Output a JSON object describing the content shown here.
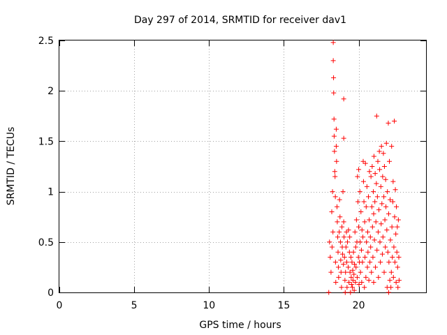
{
  "chart_data": {
    "type": "scatter",
    "title": "Day 297 of 2014, SRMTID for receiver dav1",
    "xlabel": "GPS time / hours",
    "ylabel": "SRMTID / TECUs",
    "xlim": [
      0,
      24.5
    ],
    "ylim": [
      0,
      2.5
    ],
    "xticks": [
      0,
      5,
      10,
      15,
      20
    ],
    "xtick_labels": [
      "0",
      "5",
      "10",
      "15",
      "20"
    ],
    "yticks": [
      0,
      0.5,
      1,
      1.5,
      2,
      2.5
    ],
    "ytick_labels": [
      "0",
      "0.5",
      "1",
      "1.5",
      "2",
      "2.5"
    ],
    "grid": true,
    "marker": "+",
    "color": "#ff0000",
    "series": [
      {
        "name": "dav1",
        "points": [
          [
            18.0,
            0.0
          ],
          [
            18.05,
            0.5
          ],
          [
            18.1,
            0.35
          ],
          [
            18.15,
            0.2
          ],
          [
            18.2,
            0.8
          ],
          [
            18.22,
            0.45
          ],
          [
            18.25,
            1.0
          ],
          [
            18.28,
            0.6
          ],
          [
            18.3,
            2.48
          ],
          [
            18.3,
            2.3
          ],
          [
            18.32,
            2.13
          ],
          [
            18.33,
            1.98
          ],
          [
            18.35,
            1.72
          ],
          [
            18.36,
            1.55
          ],
          [
            18.38,
            1.4
          ],
          [
            18.4,
            1.2
          ],
          [
            18.42,
            1.15
          ],
          [
            18.44,
            0.95
          ],
          [
            18.45,
            0.3
          ],
          [
            18.47,
            0.1
          ],
          [
            18.5,
            1.62
          ],
          [
            18.5,
            1.45
          ],
          [
            18.52,
            1.3
          ],
          [
            18.55,
            0.85
          ],
          [
            18.57,
            0.7
          ],
          [
            18.6,
            0.55
          ],
          [
            18.62,
            0.4
          ],
          [
            18.64,
            0.25
          ],
          [
            18.66,
            0.15
          ],
          [
            18.7,
            0.6
          ],
          [
            18.72,
            0.92
          ],
          [
            18.75,
            0.75
          ],
          [
            18.78,
            0.5
          ],
          [
            18.8,
            0.32
          ],
          [
            18.82,
            0.2
          ],
          [
            18.85,
            0.05
          ],
          [
            18.88,
            0.65
          ],
          [
            18.9,
            0.45
          ],
          [
            18.92,
            0.38
          ],
          [
            18.95,
            1.0
          ],
          [
            18.98,
            0.28
          ],
          [
            19.0,
            0.7
          ],
          [
            19.0,
            1.92
          ],
          [
            19.0,
            1.53
          ],
          [
            19.02,
            0.55
          ],
          [
            19.05,
            0.35
          ],
          [
            19.08,
            0.12
          ],
          [
            19.1,
            0.0
          ],
          [
            19.12,
            0.2
          ],
          [
            19.15,
            0.45
          ],
          [
            19.18,
            0.6
          ],
          [
            19.2,
            0.3
          ],
          [
            19.22,
            0.05
          ],
          [
            19.25,
            0.5
          ],
          [
            19.3,
            0.25
          ],
          [
            19.32,
            0.62
          ],
          [
            19.35,
            0.1
          ],
          [
            19.38,
            0.4
          ],
          [
            19.4,
            0.55
          ],
          [
            19.42,
            0.2
          ],
          [
            19.45,
            0.0
          ],
          [
            19.48,
            0.35
          ],
          [
            19.5,
            0.15
          ],
          [
            19.52,
            0.08
          ],
          [
            19.55,
            0.3
          ],
          [
            19.58,
            0.05
          ],
          [
            19.6,
            0.22
          ],
          [
            19.62,
            0.12
          ],
          [
            19.65,
            0.4
          ],
          [
            19.68,
            0.18
          ],
          [
            19.7,
            0.02
          ],
          [
            19.72,
            0.28
          ],
          [
            19.75,
            0.6
          ],
          [
            19.78,
            0.1
          ],
          [
            19.8,
            0.45
          ],
          [
            19.82,
            0.25
          ],
          [
            19.85,
            0.72
          ],
          [
            19.88,
            0.5
          ],
          [
            19.9,
            0.15
          ],
          [
            19.92,
            1.15
          ],
          [
            19.95,
            0.9
          ],
          [
            19.98,
            0.35
          ],
          [
            20.0,
            1.22
          ],
          [
            20.0,
            0.65
          ],
          [
            20.02,
            0.08
          ],
          [
            20.05,
            0.3
          ],
          [
            20.08,
            1.0
          ],
          [
            20.1,
            0.5
          ],
          [
            20.12,
            0.2
          ],
          [
            20.15,
            0.8
          ],
          [
            20.18,
            0.42
          ],
          [
            20.2,
            0.1
          ],
          [
            20.22,
            0.62
          ],
          [
            20.25,
            0.3
          ],
          [
            20.28,
            0.55
          ],
          [
            20.3,
            1.3
          ],
          [
            20.32,
            1.1
          ],
          [
            20.35,
            0.9
          ],
          [
            20.38,
            0.05
          ],
          [
            20.4,
            0.7
          ],
          [
            20.42,
            0.35
          ],
          [
            20.45,
            1.28
          ],
          [
            20.48,
            0.15
          ],
          [
            20.5,
            0.85
          ],
          [
            20.52,
            0.5
          ],
          [
            20.55,
            1.05
          ],
          [
            20.58,
            0.25
          ],
          [
            20.6,
            0.6
          ],
          [
            20.62,
            0.4
          ],
          [
            20.65,
            0.95
          ],
          [
            20.68,
            0.12
          ],
          [
            20.7,
            0.72
          ],
          [
            20.72,
            1.2
          ],
          [
            20.75,
            0.3
          ],
          [
            20.78,
            0.55
          ],
          [
            20.8,
            0.45
          ],
          [
            20.82,
            1.15
          ],
          [
            20.85,
            0.2
          ],
          [
            20.88,
            0.85
          ],
          [
            20.9,
            1.25
          ],
          [
            20.92,
            0.65
          ],
          [
            20.95,
            0.35
          ],
          [
            20.98,
            1.0
          ],
          [
            21.0,
            0.1
          ],
          [
            21.0,
            0.78
          ],
          [
            21.02,
            1.35
          ],
          [
            21.05,
            0.52
          ],
          [
            21.08,
            0.9
          ],
          [
            21.1,
            1.18
          ],
          [
            21.12,
            0.25
          ],
          [
            21.15,
            0.7
          ],
          [
            21.18,
            1.08
          ],
          [
            21.2,
            1.75
          ],
          [
            21.22,
            0.42
          ],
          [
            21.25,
            0.95
          ],
          [
            21.28,
            1.3
          ],
          [
            21.3,
            0.6
          ],
          [
            21.32,
            0.15
          ],
          [
            21.35,
            0.82
          ],
          [
            21.38,
            1.4
          ],
          [
            21.4,
            1.22
          ],
          [
            21.42,
            0.5
          ],
          [
            21.45,
            0.3
          ],
          [
            21.48,
            1.05
          ],
          [
            21.5,
            0.68
          ],
          [
            21.52,
            1.45
          ],
          [
            21.55,
            0.88
          ],
          [
            21.58,
            0.38
          ],
          [
            21.6,
            1.15
          ],
          [
            21.62,
            0.55
          ],
          [
            21.65,
            1.38
          ],
          [
            21.68,
            0.95
          ],
          [
            21.7,
            0.2
          ],
          [
            21.72,
            1.25
          ],
          [
            21.75,
            0.72
          ],
          [
            21.78,
            0.45
          ],
          [
            21.8,
            1.12
          ],
          [
            21.82,
            0.85
          ],
          [
            21.85,
            1.48
          ],
          [
            21.88,
            0.62
          ],
          [
            21.9,
            0.05
          ],
          [
            21.92,
            1.0
          ],
          [
            21.95,
            0.4
          ],
          [
            21.98,
            1.68
          ],
          [
            22.0,
            0.78
          ],
          [
            22.0,
            0.0
          ],
          [
            22.02,
            0.3
          ],
          [
            22.05,
            1.3
          ],
          [
            22.08,
            0.12
          ],
          [
            22.1,
            0.92
          ],
          [
            22.12,
            0.52
          ],
          [
            22.15,
            0.05
          ],
          [
            22.18,
            0.2
          ],
          [
            22.2,
            1.45
          ],
          [
            22.22,
            0.65
          ],
          [
            22.25,
            0.35
          ],
          [
            22.28,
            0.9
          ],
          [
            22.3,
            1.1
          ],
          [
            22.32,
            0.15
          ],
          [
            22.35,
            0.45
          ],
          [
            22.38,
            1.7
          ],
          [
            22.4,
            0.75
          ],
          [
            22.42,
            0.3
          ],
          [
            22.45,
            1.02
          ],
          [
            22.48,
            0.58
          ],
          [
            22.5,
            0.1
          ],
          [
            22.52,
            0.85
          ],
          [
            22.55,
            0.4
          ],
          [
            22.58,
            0.65
          ],
          [
            22.6,
            0.25
          ],
          [
            22.62,
            0.05
          ],
          [
            22.65,
            0.72
          ],
          [
            22.68,
            0.35
          ],
          [
            22.7,
            0.12
          ]
        ]
      }
    ]
  }
}
